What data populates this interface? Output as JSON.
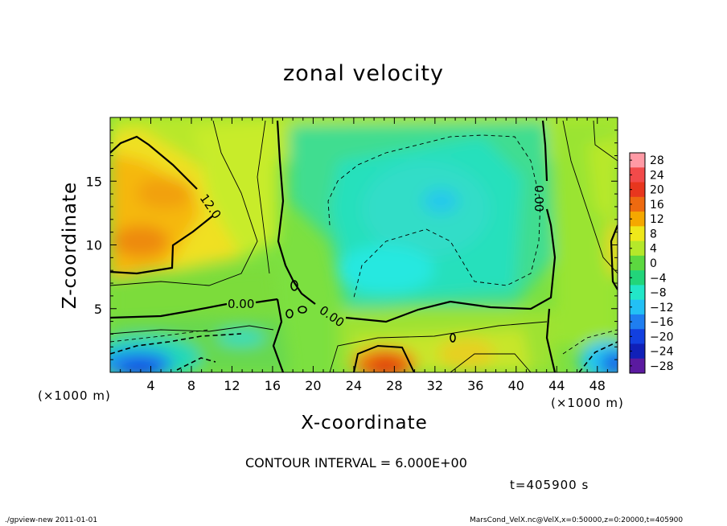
{
  "chart_data": {
    "type": "heatmap",
    "title": "zonal velocity",
    "xlabel": "X-coordinate",
    "ylabel": "Z-coordinate",
    "x_unit_label": "(×1000 m)",
    "xlim": [
      0,
      50
    ],
    "ylim": [
      0,
      20
    ],
    "x_ticks": [
      "4",
      "8",
      "12",
      "16",
      "20",
      "24",
      "28",
      "32",
      "36",
      "40",
      "44",
      "48"
    ],
    "x_tick_values": [
      4,
      8,
      12,
      16,
      20,
      24,
      28,
      32,
      36,
      40,
      44,
      48
    ],
    "y_ticks": [
      "5",
      "10",
      "15"
    ],
    "y_tick_values": [
      5,
      10,
      15
    ],
    "colorbar_labels": [
      "28",
      "24",
      "20",
      "16",
      "12",
      "8",
      "4",
      "0",
      "−4",
      "−8",
      "−12",
      "−16",
      "−20",
      "−24",
      "−28"
    ],
    "colorbar_values": [
      28,
      24,
      20,
      16,
      12,
      8,
      4,
      0,
      -4,
      -8,
      -12,
      -16,
      -20,
      -24,
      -28
    ],
    "colorbar_colors": [
      "#ff9aa5",
      "#f24a4a",
      "#e8361e",
      "#ee6a10",
      "#f5a800",
      "#efe81a",
      "#b5e82a",
      "#5cd840",
      "#22d57a",
      "#22e6c8",
      "#23c0f5",
      "#1f7ef0",
      "#1240e0",
      "#1020b8",
      "#5b1aa0"
    ],
    "contour_labels": [
      "12.0",
      "0.00",
      "0.00",
      "0.00"
    ],
    "contour_interval_text": "CONTOUR INTERVAL = 6.000E+00",
    "time_text": "t=405900 s",
    "grid": false,
    "legend": "colorbar-right"
  },
  "footer": {
    "left": "./gpview-new  2011-01-01",
    "right": "MarsCond_VelX.nc@VelX,x=0:50000,z=0:20000,t=405900"
  }
}
